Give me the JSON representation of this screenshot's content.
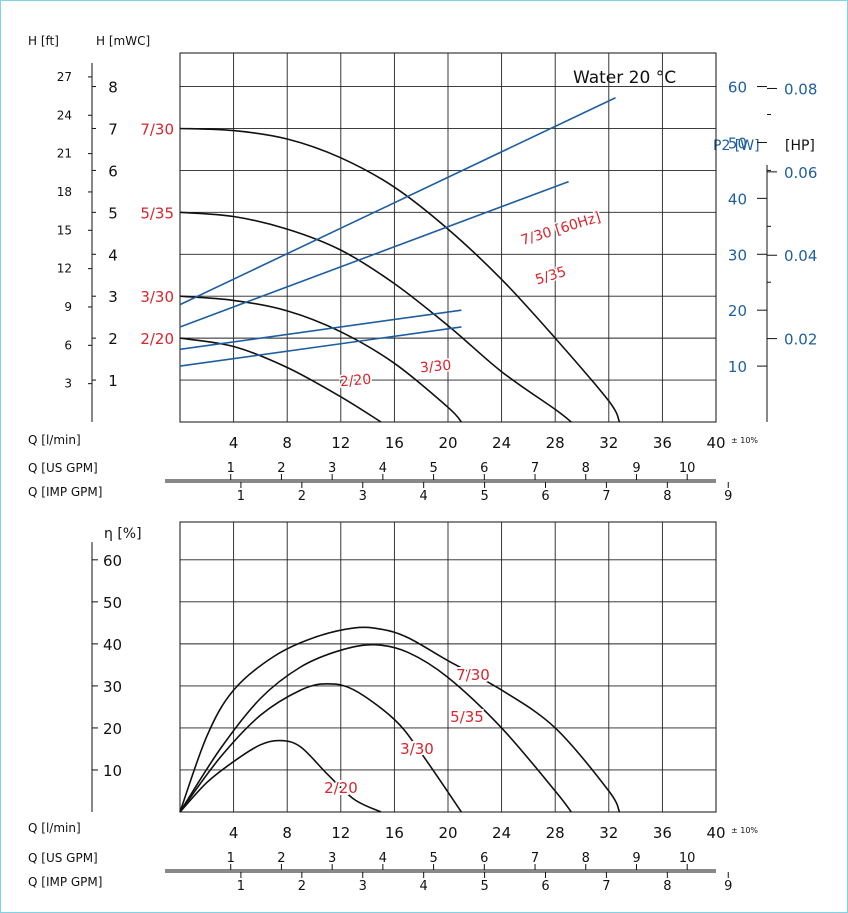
{
  "chart_data": [
    {
      "type": "line",
      "annotation": "Water 20 °C",
      "xlabel": "Q [l/min]",
      "xlim": [
        0,
        40
      ],
      "x_ticks": [
        4,
        8,
        12,
        16,
        20,
        24,
        28,
        32,
        36,
        40
      ],
      "x_tolerance": "± 10%",
      "secondary_x_axes": [
        {
          "label": "Q [US GPM]",
          "ticks": [
            "1",
            "2",
            "3",
            "4",
            "5",
            "6",
            "7",
            "8",
            "9",
            "10"
          ]
        },
        {
          "label": "Q [IMP GPM]",
          "ticks": [
            "1",
            "2",
            "3",
            "4",
            "5",
            "6",
            "7",
            "8",
            "9"
          ]
        }
      ],
      "y_axes": [
        {
          "label": "H [ft]",
          "ticks": [
            "3",
            "6",
            "9",
            "12",
            "15",
            "18",
            "21",
            "24",
            "27"
          ]
        },
        {
          "label": "H [mWC]",
          "ticks": [
            "1",
            "2",
            "3",
            "4",
            "5",
            "6",
            "7",
            "8"
          ],
          "ylim": [
            0,
            8.8
          ]
        },
        {
          "label": "P2 [W]",
          "ticks": [
            "10",
            "20",
            "30",
            "40",
            "50",
            "60"
          ],
          "ylim": [
            0,
            66
          ]
        },
        {
          "label": "[HP]",
          "ticks": [
            "0.02",
            "0.04",
            "0.06",
            "0.08"
          ]
        }
      ],
      "series": [
        {
          "name": "7/30",
          "kind": "head",
          "x": [
            0,
            4,
            8,
            12,
            16,
            20,
            24,
            28,
            32,
            32.8
          ],
          "y": [
            7.0,
            6.95,
            6.75,
            6.3,
            5.6,
            4.6,
            3.4,
            2.0,
            0.5,
            0
          ]
        },
        {
          "name": "5/35",
          "kind": "head",
          "x": [
            0,
            4,
            8,
            12,
            16,
            20,
            24,
            28,
            29.2
          ],
          "y": [
            5.0,
            4.9,
            4.6,
            4.1,
            3.3,
            2.3,
            1.2,
            0.3,
            0
          ]
        },
        {
          "name": "3/30",
          "kind": "head",
          "x": [
            0,
            4,
            8,
            12,
            16,
            20,
            21.0
          ],
          "y": [
            3.0,
            2.9,
            2.65,
            2.15,
            1.4,
            0.35,
            0
          ]
        },
        {
          "name": "2/20",
          "kind": "head",
          "x": [
            0,
            4,
            8,
            12,
            15.0
          ],
          "y": [
            2.0,
            1.8,
            1.3,
            0.6,
            0
          ]
        },
        {
          "name": "7/30 [60Hz]",
          "kind": "power",
          "x": [
            0,
            32.5
          ],
          "y": [
            21,
            58
          ]
        },
        {
          "name": "5/35",
          "kind": "power",
          "x": [
            0,
            29
          ],
          "y": [
            17,
            43
          ]
        },
        {
          "name": "3/30",
          "kind": "power",
          "x": [
            0,
            21
          ],
          "y": [
            13,
            20
          ]
        },
        {
          "name": "2/20",
          "kind": "power",
          "x": [
            0,
            21
          ],
          "y": [
            10,
            17
          ]
        }
      ],
      "curve_labels_head": [
        "7/30",
        "5/35",
        "3/30",
        "2/20"
      ]
    },
    {
      "type": "line",
      "ylabel": "η [%]",
      "xlabel": "Q [l/min]",
      "xlim": [
        0,
        40
      ],
      "ylim": [
        0,
        69
      ],
      "y_ticks": [
        10,
        20,
        30,
        40,
        50,
        60
      ],
      "x_ticks": [
        4,
        8,
        12,
        16,
        20,
        24,
        28,
        32,
        36,
        40
      ],
      "x_tolerance": "± 10%",
      "secondary_x_axes": [
        {
          "label": "Q [US GPM]",
          "ticks": [
            "1",
            "2",
            "3",
            "4",
            "5",
            "6",
            "7",
            "8",
            "9",
            "10"
          ]
        },
        {
          "label": "Q [IMP GPM]",
          "ticks": [
            "1",
            "2",
            "3",
            "4",
            "5",
            "6",
            "7",
            "8",
            "9"
          ]
        }
      ],
      "series": [
        {
          "name": "7/30",
          "x": [
            0,
            2,
            4,
            7,
            10,
            13,
            15,
            17,
            20,
            24,
            28,
            32,
            32.8
          ],
          "y": [
            0,
            18,
            29,
            37,
            41.5,
            43.8,
            43.5,
            41.5,
            36,
            29,
            20,
            5,
            0
          ]
        },
        {
          "name": "5/35",
          "x": [
            0,
            3,
            6,
            9,
            12,
            14.5,
            17,
            20,
            24,
            28,
            29.2
          ],
          "y": [
            0,
            15,
            27,
            34.5,
            38.5,
            39.8,
            38,
            32,
            20,
            5,
            0
          ]
        },
        {
          "name": "3/30",
          "x": [
            0,
            3,
            6,
            9,
            11,
            13,
            16,
            18,
            21
          ],
          "y": [
            0,
            13,
            23,
            29,
            30.5,
            29,
            22,
            14,
            0
          ]
        },
        {
          "name": "2/20",
          "x": [
            0,
            2,
            4,
            6,
            7.5,
            9,
            11,
            13,
            15
          ],
          "y": [
            0,
            7,
            12,
            16,
            17,
            15.5,
            9,
            3,
            0
          ]
        }
      ],
      "curve_labels": [
        "7/30",
        "5/35",
        "3/30",
        "2/20"
      ]
    }
  ]
}
